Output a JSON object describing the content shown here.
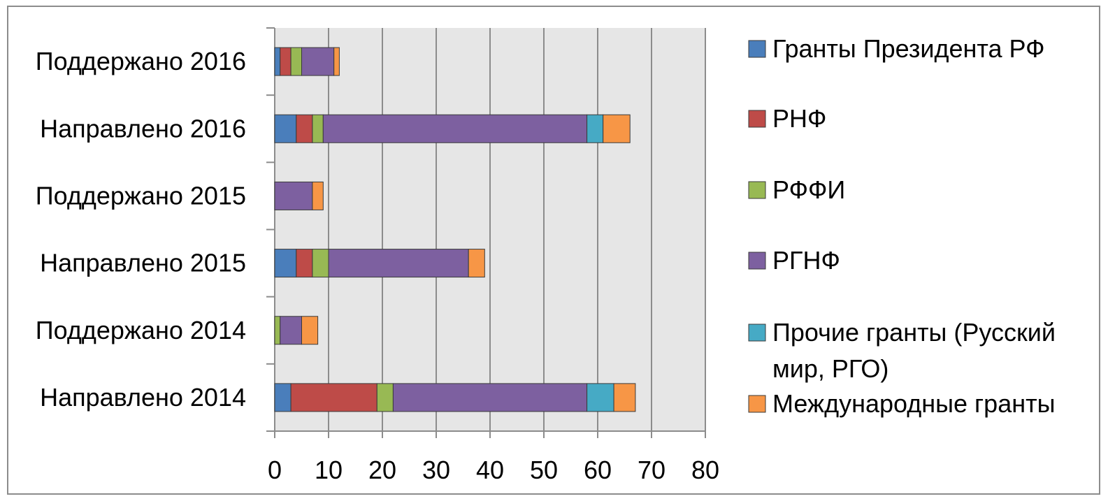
{
  "chart_data": {
    "type": "bar",
    "orientation": "horizontal",
    "stacked": true,
    "categories": [
      "Направлено 2014",
      "Поддержано 2014",
      "Направлено 2015",
      "Поддержано 2015",
      "Направлено 2016",
      "Поддержано 2016"
    ],
    "series": [
      {
        "name": "Гранты Президента РФ",
        "color": "#4a7ebb",
        "values": [
          3,
          0,
          4,
          0,
          4,
          1
        ]
      },
      {
        "name": "РНФ",
        "color": "#be4b48",
        "values": [
          16,
          0,
          3,
          0,
          3,
          2
        ]
      },
      {
        "name": "РФФИ",
        "color": "#98b954",
        "values": [
          3,
          1,
          3,
          0,
          2,
          2
        ]
      },
      {
        "name": "РГНФ",
        "color": "#7d60a0",
        "values": [
          36,
          4,
          26,
          7,
          49,
          6
        ]
      },
      {
        "name": "Прочие гранты (Русский мир, РГО)",
        "color": "#46aac5",
        "values": [
          5,
          0,
          0,
          0,
          3,
          0
        ]
      },
      {
        "name": "Международные гранты",
        "color": "#f79646",
        "values": [
          4,
          3,
          3,
          2,
          5,
          1
        ]
      }
    ],
    "xlim": [
      0,
      80
    ],
    "xticks": [
      "0",
      "10",
      "20",
      "30",
      "40",
      "50",
      "60",
      "70",
      "80"
    ],
    "grid": true,
    "legend_position": "right",
    "title": "",
    "xlabel": "",
    "ylabel": ""
  }
}
